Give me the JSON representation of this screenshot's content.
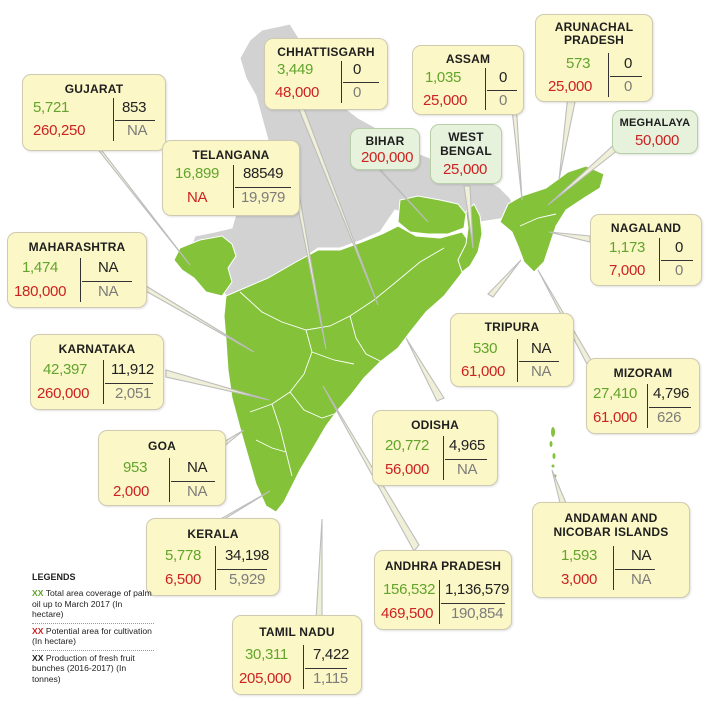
{
  "colors": {
    "area_covered": "#62a42c",
    "potential_area": "#cc2222",
    "production": "#222222",
    "map_green": "#84c23a",
    "map_grey": "#d2d2d2",
    "box_fill": "#fbf7c6",
    "box_green_fill": "#e6f2dc"
  },
  "states": [
    {
      "name": "GUJARAT",
      "area": "5,721",
      "potential": "260,250",
      "prod_top": "853",
      "prod_bottom": "NA"
    },
    {
      "name": "CHHATTISGARH",
      "area": "3,449",
      "potential": "48,000",
      "prod_top": "0",
      "prod_bottom": "0"
    },
    {
      "name": "ASSAM",
      "area": "1,035",
      "potential": "25,000",
      "prod_top": "0",
      "prod_bottom": "0"
    },
    {
      "name": "ARUNACHAL\nPRADESH",
      "area": "573",
      "potential": "25,000",
      "prod_top": "0",
      "prod_bottom": "0"
    },
    {
      "name": "TELANGANA",
      "area": "16,899",
      "potential": "NA",
      "prod_top": "88549",
      "prod_bottom": "19,979"
    },
    {
      "name": "MAHARASHTRA",
      "area": "1,474",
      "potential": "180,000",
      "prod_top": "NA",
      "prod_bottom": "NA"
    },
    {
      "name": "NAGALAND",
      "area": "1,173",
      "potential": "7,000",
      "prod_top": "0",
      "prod_bottom": "0"
    },
    {
      "name": "TRIPURA",
      "area": "530",
      "potential": "61,000",
      "prod_top": "NA",
      "prod_bottom": "NA"
    },
    {
      "name": "KARNATAKA",
      "area": "42,397",
      "potential": "260,000",
      "prod_top": "11,912",
      "prod_bottom": "2,051"
    },
    {
      "name": "MIZORAM",
      "area": "27,410",
      "potential": "61,000",
      "prod_top": "4,796",
      "prod_bottom": "626"
    },
    {
      "name": "ODISHA",
      "area": "20,772",
      "potential": "56,000",
      "prod_top": "4,965",
      "prod_bottom": "NA"
    },
    {
      "name": "GOA",
      "area": "953",
      "potential": "2,000",
      "prod_top": "NA",
      "prod_bottom": "NA"
    },
    {
      "name": "ANDAMAN AND\nNICOBAR ISLANDS",
      "area": "1,593",
      "potential": "3,000",
      "prod_top": "NA",
      "prod_bottom": "NA"
    },
    {
      "name": "KERALA",
      "area": "5,778",
      "potential": "6,500",
      "prod_top": "34,198",
      "prod_bottom": "5,929"
    },
    {
      "name": "ANDHRA PRADESH",
      "area": "156,532",
      "potential": "469,500",
      "prod_top": "1,136,579",
      "prod_bottom": "190,854"
    },
    {
      "name": "TAMIL NADU",
      "area": "30,311",
      "potential": "205,000",
      "prod_top": "7,422",
      "prod_bottom": "1,115"
    }
  ],
  "potential_only": [
    {
      "name": "BIHAR",
      "potential": "200,000"
    },
    {
      "name": "WEST\nBENGAL",
      "potential": "25,000"
    },
    {
      "name": "MEGHALAYA",
      "potential": "50,000"
    }
  ],
  "legend": {
    "title": "LEGENDS",
    "items": [
      {
        "marker": "XX",
        "text": " Total area coverage of palm oil up to March 2017 (In hectare)"
      },
      {
        "marker": "XX",
        "text": " Potential area for cultivation (In hectare)"
      },
      {
        "marker": "XX",
        "text": " Production of fresh fruit bunches (2016-2017) (In tonnes)"
      }
    ]
  }
}
